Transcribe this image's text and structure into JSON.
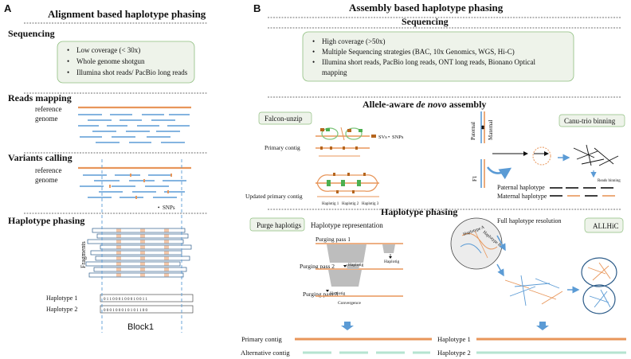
{
  "panelA": {
    "letter": "A",
    "title": "Alignment based haplotype phasing",
    "sequencing": {
      "heading": "Sequencing",
      "bullets": [
        "Low coverage (< 30x)",
        "Whole genome shotgun",
        "Illumina shot reads/ PacBio long reads"
      ]
    },
    "reads_mapping": {
      "heading": "Reads mapping",
      "ref_line1": "reference",
      "ref_line2": "genome"
    },
    "variants_calling": {
      "heading": "Variants calling",
      "ref_line1": "reference",
      "ref_line2": "genome",
      "snps_label": "SNPs"
    },
    "haplotype_phasing": {
      "heading": "Haplotype phasing",
      "fragments_label": "Fragments",
      "hap1_label": "Haplotype 1",
      "hap2_label": "Haplotype 2",
      "hap1_bits": "0 1 1 0 0 0 1 0 0 0 1 0 0 1 1",
      "hap2_bits": "0 0 0 1 0 0 0 1 0 1 0 1 1 0 0",
      "block_label": "Block1"
    }
  },
  "panelB": {
    "letter": "B",
    "title": "Assembly based haplotype phasing",
    "sequencing": {
      "heading": "Sequencing",
      "bullets": [
        "High coverage (>50x)",
        "Multiple Sequencing strategies (BAC, 10x Genomics, WGS, Hi-C)",
        "Illumina short reads, PacBio long reads, ONT long reads, Bionano Optical",
        "mapping"
      ]
    },
    "assembly": {
      "heading_pre": "Allele-aware ",
      "heading_italic": "de novo",
      "heading_post": " assembly",
      "falcon_label": "Falcon-unzip",
      "primary_contig": "Primary contig",
      "svs": "SVs",
      "snps": "SNPs",
      "updated_primary": "Updated primary contig",
      "haplotigs": [
        "Haplotig 1",
        "Haplotig 2",
        "Haplotig 3"
      ],
      "canu_label": "Canu-trio binning",
      "paternal": "Paternal",
      "maternal": "Maternal",
      "f1": "F1",
      "reads_binning": "Reads binning",
      "paternal_haplotype": "Paternal haplotype",
      "maternal_haplotype": "Maternal haplotype"
    },
    "phasing": {
      "heading": "Haplotype phasing",
      "purge_label": "Purge haplotigs",
      "haplotype_representation": "Haplotype representation",
      "purging_pass_1": "Purging pass 1",
      "purging_pass_2": "Purging pass 2",
      "purging_pass_3": "Purging pass 3",
      "haplotig": "Haplotig",
      "convergence": "Convergence",
      "full_resolution": "Full haplotype resolution",
      "allhic_label": "ALLHiC",
      "hap_a": "Haplotype A",
      "hap_b": "Haplotype B"
    },
    "outputs": {
      "primary_contig": "Primary contig",
      "alternative_contig": "Alternative contig",
      "haplotype_1": "Haplotype 1",
      "haplotype_2": "Haplotype 2"
    }
  },
  "colors": {
    "orange": "#e8965a",
    "blue": "#5b9bd5",
    "green": "#7dc47a",
    "mint": "#b5e3d0",
    "gray": "#b8b8b8",
    "box": "#eef3ea",
    "boxBorder": "#8fbf7f"
  }
}
